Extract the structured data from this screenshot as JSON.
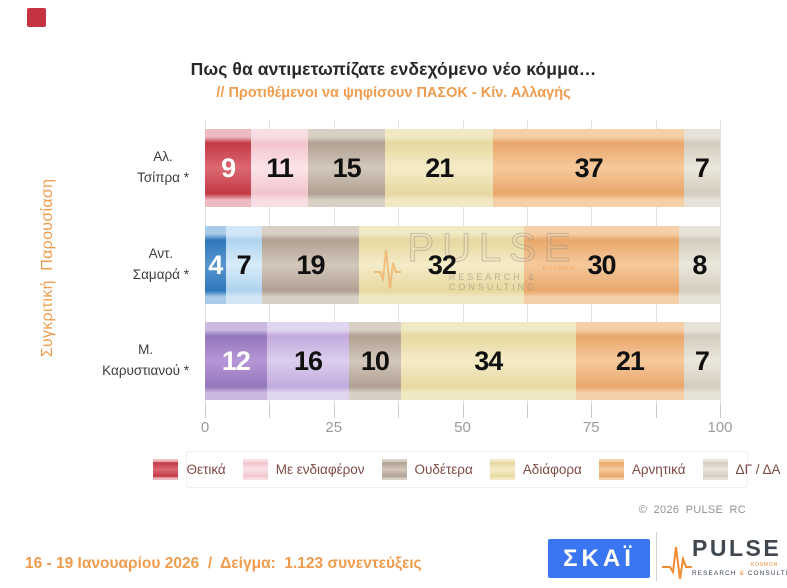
{
  "brand": {
    "corner_square_color": "#c63340",
    "accent_orange": "#f09c4e",
    "skai_blue": "#3b76f2"
  },
  "chart_data": {
    "type": "bar",
    "stacked": true,
    "orientation": "horizontal",
    "title": "Πως θα αντιμετωπίζατε ενδεχόμενο νέο κόμμα…",
    "subtitle": "// Προτιθέμενοι να ψηφίσουν ΠΑΣΟΚ - Κίν. Αλλαγής",
    "categories": [
      "Αλ. Τσίπρα *",
      "Αντ. Σαμαρά *",
      "Μ. Καρυστιανού *"
    ],
    "category_lines": [
      [
        "Αλ.",
        "Τσίπρα *"
      ],
      [
        "Αντ.",
        "Σαμαρά *"
      ],
      [
        "Μ.",
        "Καρυστιανού *"
      ]
    ],
    "series": [
      {
        "name": "Θετικά",
        "values": [
          9,
          4,
          12
        ],
        "palette_by_row": [
          "red",
          "blue",
          "purple"
        ]
      },
      {
        "name": "Με ενδιαφέρον",
        "values": [
          11,
          7,
          16
        ],
        "palette_by_row": [
          "pink",
          "lightblue",
          "lightpurple"
        ]
      },
      {
        "name": "Ουδέτερα",
        "values": [
          15,
          19,
          10
        ],
        "palette_by_row": [
          "taupe",
          "taupe",
          "taupe"
        ]
      },
      {
        "name": "Αδιάφορα",
        "values": [
          21,
          32,
          34
        ],
        "palette_by_row": [
          "cream",
          "cream",
          "cream"
        ]
      },
      {
        "name": "Αρνητικά",
        "values": [
          37,
          30,
          21
        ],
        "palette_by_row": [
          "orange",
          "orange",
          "orange"
        ]
      },
      {
        "name": "ΔΓ / ΔΑ",
        "values": [
          7,
          8,
          7
        ],
        "palette_by_row": [
          "gray",
          "gray",
          "gray"
        ]
      }
    ],
    "xlim": [
      0,
      100
    ],
    "major_ticks": [
      0,
      25,
      50,
      75,
      100
    ],
    "minor_tick_step": 12.5,
    "grid": true,
    "legend_position": "bottom",
    "palette": {
      "red": {
        "dark": "#c23a46",
        "mid": "#db6872",
        "pale": "#ecbabf",
        "text": "#ffffff"
      },
      "pink": {
        "dark": "#f3c4cd",
        "mid": "#fae4e9",
        "pale": "#f8dee3",
        "text": "#101010"
      },
      "taupe": {
        "dark": "#b0a192",
        "mid": "#d3c8bb",
        "pale": "#d8d0c5",
        "text": "#101010"
      },
      "cream": {
        "dark": "#e7d8a0",
        "mid": "#f4ecc8",
        "pale": "#f1e9c3",
        "text": "#101010"
      },
      "orange": {
        "dark": "#e9a76a",
        "mid": "#f5c99d",
        "pale": "#f4cfa8",
        "text": "#101010"
      },
      "gray": {
        "dark": "#d4ccbe",
        "mid": "#ebe7dc",
        "pale": "#e7e2d8",
        "text": "#101010"
      },
      "blue": {
        "dark": "#2f78bc",
        "mid": "#5895cd",
        "pale": "#a9cbe7",
        "text": "#ffffff"
      },
      "lightblue": {
        "dark": "#aed3ef",
        "mid": "#d9ecfa",
        "pale": "#d3e6f5",
        "text": "#101010"
      },
      "purple": {
        "dark": "#9477bc",
        "mid": "#b596d6",
        "pale": "#ccb9e1",
        "text": "#ffffff"
      },
      "lightpurple": {
        "dark": "#c2aade",
        "mid": "#dccEee",
        "pale": "#e1d6f0",
        "text": "#101010"
      }
    }
  },
  "side_label": "Συγκριτική  Παρουσίαση",
  "watermark": {
    "title": "PULSE",
    "subtitle": "RESEARCH & CONSULTING",
    "tag": "KOSMON"
  },
  "copyright": "© 2026 PULSE RC",
  "footer": {
    "date_sample": "16 - 19 Ιανουαρίου 2026  /  Δείγμα:  1.123 συνεντεύξεις",
    "skai_logo": "ΣΚΑΪ",
    "pulse_logo": "PULSE",
    "pulse_sub": "RESEARCH & CONSULTING",
    "pulse_tag": "KOSMON"
  }
}
